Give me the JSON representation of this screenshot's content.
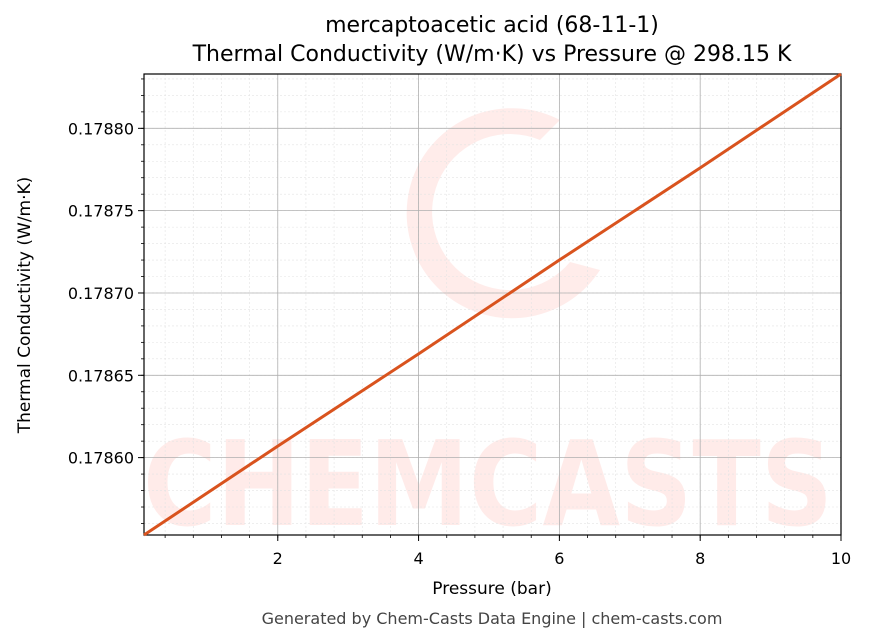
{
  "chart_data": {
    "type": "line",
    "title": "mercaptoacetic acid (68-11-1)",
    "subtitle": "Thermal Conductivity (W/m·K) vs Pressure @ 298.15 K",
    "xlabel": "Pressure (bar)",
    "ylabel": "Thermal Conductivity (W/m·K)",
    "xlim": [
      0.1,
      10
    ],
    "ylim": [
      0.178553,
      0.178833
    ],
    "xticks": [
      2,
      4,
      6,
      8,
      10
    ],
    "xtick_labels": [
      "2",
      "4",
      "6",
      "8",
      "10"
    ],
    "yticks": [
      0.1786,
      0.17865,
      0.1787,
      0.17875,
      0.1788
    ],
    "ytick_labels": [
      "0.17860",
      "0.17865",
      "0.17870",
      "0.17875",
      "0.17880"
    ],
    "grid": true,
    "series": [
      {
        "color": "#d9531e",
        "x": [
          0.1,
          2,
          4,
          6,
          8,
          10
        ],
        "y": [
          0.178553,
          0.178607,
          0.178663,
          0.17872,
          0.178776,
          0.178833
        ]
      }
    ]
  },
  "watermark": {
    "text": "CHEMCASTS",
    "color": "#ff6b5c"
  },
  "footer": "Generated by Chem-Casts Data Engine | chem-casts.com"
}
